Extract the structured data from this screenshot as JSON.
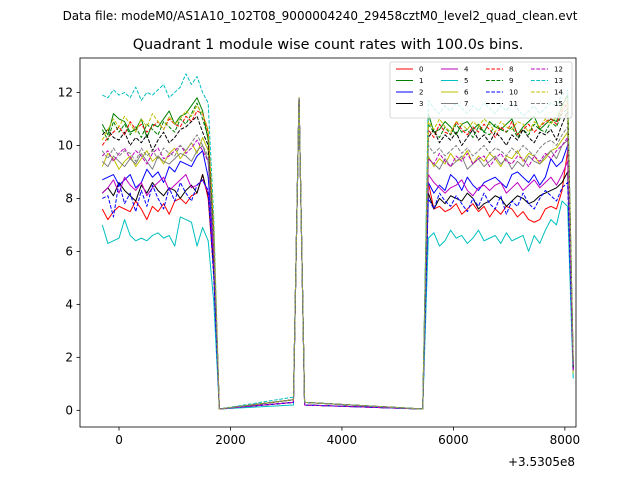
{
  "chart_data": {
    "type": "line",
    "suptitle": "Data file: modeM0/AS1A10_102T08_9000004240_29458cztM0_level2_quad_clean.evt",
    "title": "Quadrant 1 module wise count rates with 100.0s bins.",
    "xlabel": "",
    "ylabel": "",
    "x_offset_label": "+3.5305e8",
    "xlim": [
      -700,
      8200
    ],
    "ylim": [
      -0.63,
      13.3
    ],
    "xticks": [
      0,
      2000,
      4000,
      6000,
      8000
    ],
    "yticks": [
      0,
      2,
      4,
      6,
      8,
      10,
      12
    ],
    "grid": false,
    "legend_location": "top-right",
    "legend_columns": 4,
    "segments": [
      {
        "name": "seg1",
        "start": -300,
        "step": 100,
        "count": 22
      },
      {
        "name": "seg2",
        "start": 3130,
        "step": 100,
        "count": 3
      },
      {
        "name": "seg3",
        "start": 5450,
        "step": 100,
        "count": 28
      }
    ],
    "gaps": [
      {
        "from": 1900,
        "to": 3130
      },
      {
        "from": 3330,
        "to": 5450
      }
    ],
    "series": [
      {
        "name": "0",
        "color": "#ff0000",
        "style": "solid",
        "seg1": [
          7.6,
          7.2,
          7.5,
          7.7,
          7.6,
          7.5,
          7.9,
          7.6,
          7.2,
          7.7,
          7.5,
          7.8,
          7.4,
          7.9,
          8.0,
          7.8,
          8.1,
          8.2,
          8.9,
          8.0,
          5.2,
          0.05
        ],
        "seg2": [
          0.3,
          11.8,
          0.2
        ],
        "seg3": [
          0.05,
          8.6,
          7.6,
          7.7,
          7.5,
          7.6,
          7.8,
          7.4,
          7.6,
          7.8,
          7.5,
          7.7,
          7.3,
          7.6,
          7.4,
          7.7,
          7.6,
          7.3,
          7.5,
          7.2,
          7.1,
          7.2,
          7.6,
          7.7,
          7.6,
          8.3,
          9.8,
          1.8
        ]
      },
      {
        "name": "1",
        "color": "#008000",
        "style": "solid",
        "seg1": [
          10.8,
          10.4,
          11.2,
          11.0,
          10.9,
          10.5,
          10.6,
          11.0,
          10.3,
          10.8,
          10.7,
          11.0,
          11.3,
          10.8,
          11.1,
          11.2,
          11.5,
          11.8,
          11.3,
          10.2,
          6.2,
          0.05
        ],
        "seg2": [
          0.4,
          11.8,
          0.3
        ],
        "seg3": [
          0.05,
          11.2,
          10.5,
          10.6,
          10.9,
          10.7,
          10.4,
          10.8,
          10.9,
          10.6,
          10.8,
          10.5,
          10.9,
          10.7,
          10.6,
          10.8,
          11.0,
          10.4,
          10.7,
          10.9,
          11.1,
          10.6,
          10.8,
          11.0,
          10.9,
          11.5,
          11.9,
          1.8
        ]
      },
      {
        "name": "2",
        "color": "#0000ff",
        "style": "solid",
        "seg1": [
          8.7,
          8.8,
          8.9,
          8.5,
          8.7,
          8.9,
          8.4,
          8.6,
          9.1,
          8.8,
          9.0,
          8.6,
          9.2,
          9.0,
          9.4,
          9.3,
          9.2,
          9.6,
          9.8,
          8.8,
          6.0,
          0.05
        ],
        "seg2": [
          0.4,
          11.8,
          0.3
        ],
        "seg3": [
          0.05,
          8.6,
          8.2,
          8.5,
          8.3,
          8.9,
          8.7,
          8.3,
          8.8,
          8.5,
          8.3,
          8.6,
          8.7,
          8.8,
          8.6,
          8.4,
          8.9,
          9.0,
          8.8,
          8.6,
          8.9,
          8.5,
          8.8,
          9.5,
          9.2,
          9.4,
          10.0,
          1.5
        ]
      },
      {
        "name": "3",
        "color": "#000000",
        "style": "solid",
        "seg1": [
          8.2,
          8.4,
          8.1,
          8.6,
          8.3,
          8.1,
          7.9,
          8.5,
          8.2,
          8.6,
          8.3,
          8.1,
          8.4,
          8.3,
          8.0,
          8.3,
          8.5,
          8.2,
          8.9,
          8.1,
          5.5,
          0.05
        ],
        "seg2": [
          0.3,
          11.8,
          0.2
        ],
        "seg3": [
          0.05,
          8.2,
          7.6,
          8.0,
          7.8,
          8.1,
          8.0,
          7.9,
          8.2,
          8.0,
          7.6,
          7.8,
          7.9,
          8.1,
          8.0,
          7.7,
          7.9,
          8.1,
          8.0,
          7.8,
          7.9,
          8.1,
          8.2,
          8.3,
          8.4,
          8.6,
          9.0,
          1.6
        ]
      },
      {
        "name": "4",
        "color": "#bf00bf",
        "style": "solid",
        "seg1": [
          8.2,
          8.4,
          8.7,
          8.2,
          8.8,
          8.5,
          8.3,
          8.6,
          8.1,
          8.4,
          8.6,
          8.8,
          8.3,
          8.5,
          8.7,
          8.9,
          8.4,
          8.5,
          8.7,
          8.2,
          5.8,
          0.05
        ],
        "seg2": [
          0.3,
          11.8,
          0.2
        ],
        "seg3": [
          0.05,
          8.9,
          8.6,
          8.4,
          8.2,
          8.4,
          8.5,
          8.7,
          8.3,
          8.1,
          8.4,
          8.5,
          8.3,
          8.5,
          8.6,
          8.2,
          8.4,
          8.6,
          8.3,
          8.5,
          8.7,
          8.4,
          8.6,
          8.8,
          8.5,
          8.9,
          9.4,
          1.7
        ]
      },
      {
        "name": "5",
        "color": "#00bfbf",
        "style": "solid",
        "seg1": [
          7.0,
          6.3,
          6.4,
          6.5,
          7.2,
          6.6,
          6.4,
          6.5,
          6.4,
          6.6,
          6.7,
          6.5,
          6.6,
          6.2,
          7.3,
          7.2,
          7.1,
          6.2,
          6.9,
          6.4,
          4.1,
          0.05
        ],
        "seg2": [
          0.2,
          11.8,
          0.2
        ],
        "seg3": [
          0.05,
          6.5,
          6.7,
          6.2,
          6.4,
          6.8,
          6.5,
          6.6,
          6.3,
          6.5,
          6.8,
          6.4,
          6.5,
          6.6,
          6.3,
          6.7,
          6.4,
          6.5,
          6.6,
          6.0,
          6.6,
          6.3,
          6.8,
          7.2,
          7.0,
          7.9,
          7.7,
          1.2
        ]
      },
      {
        "name": "6",
        "color": "#bfbf00",
        "style": "solid",
        "seg1": [
          9.2,
          9.7,
          9.5,
          9.1,
          9.4,
          9.6,
          9.2,
          9.5,
          9.8,
          9.4,
          9.6,
          9.3,
          9.7,
          9.9,
          9.5,
          9.8,
          10.1,
          9.7,
          10.3,
          9.8,
          6.5,
          0.05
        ],
        "seg2": [
          0.4,
          11.8,
          0.3
        ],
        "seg3": [
          0.05,
          9.6,
          9.2,
          9.5,
          9.3,
          9.7,
          9.4,
          9.5,
          9.8,
          9.3,
          9.6,
          9.4,
          9.7,
          9.5,
          9.2,
          9.6,
          9.5,
          9.8,
          9.4,
          9.7,
          9.6,
          9.3,
          9.5,
          9.8,
          9.9,
          10.2,
          10.5,
          1.4
        ]
      },
      {
        "name": "7",
        "color": "#808080",
        "style": "solid",
        "seg1": [
          9.4,
          9.2,
          9.6,
          9.4,
          9.2,
          9.5,
          9.3,
          9.7,
          9.4,
          9.1,
          9.6,
          9.4,
          9.3,
          9.5,
          9.7,
          9.6,
          9.4,
          9.8,
          10.0,
          9.4,
          6.3,
          0.05
        ],
        "seg2": [
          0.4,
          11.8,
          0.3
        ],
        "seg3": [
          0.05,
          9.5,
          9.3,
          9.1,
          9.5,
          9.2,
          9.4,
          9.6,
          9.1,
          9.3,
          9.5,
          9.2,
          9.4,
          9.6,
          9.3,
          9.5,
          9.1,
          9.4,
          9.2,
          9.6,
          9.4,
          9.3,
          9.6,
          9.8,
          9.5,
          10.0,
          10.2,
          1.6
        ]
      },
      {
        "name": "8",
        "color": "#ff0000",
        "style": "dashed",
        "seg1": [
          10.0,
          10.3,
          10.5,
          10.7,
          10.4,
          10.9,
          10.6,
          10.8,
          10.5,
          10.7,
          10.9,
          10.6,
          11.0,
          10.8,
          10.7,
          11.1,
          10.9,
          11.3,
          11.2,
          10.5,
          6.8,
          0.05
        ],
        "seg2": [
          0.4,
          11.8,
          0.3
        ],
        "seg3": [
          0.05,
          10.6,
          10.3,
          10.8,
          10.5,
          10.4,
          10.9,
          10.6,
          10.4,
          10.7,
          10.5,
          10.8,
          10.6,
          10.3,
          10.7,
          10.5,
          10.9,
          10.4,
          10.6,
          10.8,
          10.5,
          10.7,
          10.9,
          11.0,
          10.8,
          11.3,
          11.6,
          1.9
        ]
      },
      {
        "name": "9",
        "color": "#008000",
        "style": "dashed",
        "seg1": [
          10.6,
          10.2,
          10.9,
          10.5,
          10.8,
          10.4,
          10.7,
          10.3,
          10.8,
          10.6,
          10.4,
          10.9,
          10.7,
          10.5,
          11.0,
          10.8,
          11.2,
          11.6,
          11.0,
          10.3,
          6.6,
          0.05
        ],
        "seg2": [
          0.4,
          11.8,
          0.3
        ],
        "seg3": [
          0.05,
          10.8,
          10.5,
          10.3,
          10.7,
          10.4,
          10.8,
          10.5,
          10.6,
          10.3,
          10.7,
          10.5,
          10.4,
          10.8,
          10.6,
          10.5,
          10.7,
          10.3,
          10.6,
          10.4,
          10.8,
          10.6,
          10.5,
          10.9,
          10.7,
          11.2,
          11.4,
          1.7
        ]
      },
      {
        "name": "10",
        "color": "#0000ff",
        "style": "dashed",
        "seg1": [
          8.0,
          8.1,
          7.3,
          8.6,
          7.8,
          8.2,
          7.5,
          8.3,
          7.7,
          8.5,
          8.0,
          7.6,
          8.4,
          7.9,
          8.6,
          8.2,
          7.9,
          8.5,
          8.7,
          8.3,
          5.0,
          0.05
        ],
        "seg2": [
          0.3,
          11.8,
          0.2
        ],
        "seg3": [
          0.05,
          8.0,
          7.6,
          8.2,
          7.9,
          7.7,
          8.1,
          7.8,
          7.5,
          8.0,
          7.7,
          8.2,
          7.8,
          7.6,
          8.1,
          7.4,
          7.9,
          7.7,
          8.2,
          7.8,
          7.6,
          8.0,
          8.3,
          8.1,
          7.9,
          8.4,
          8.6,
          1.5
        ]
      },
      {
        "name": "11",
        "color": "#000000",
        "style": "dashed",
        "seg1": [
          10.4,
          10.6,
          10.3,
          10.2,
          10.5,
          10.0,
          10.3,
          10.1,
          10.4,
          9.8,
          10.2,
          10.5,
          10.1,
          10.3,
          10.6,
          10.7,
          10.9,
          11.1,
          10.5,
          10.0,
          6.4,
          0.05
        ],
        "seg2": [
          0.4,
          11.8,
          0.3
        ],
        "seg3": [
          0.05,
          10.3,
          10.6,
          10.1,
          10.4,
          10.2,
          10.5,
          10.0,
          10.3,
          10.6,
          10.2,
          10.4,
          10.1,
          10.5,
          10.3,
          10.0,
          10.4,
          10.2,
          10.6,
          10.3,
          10.1,
          10.5,
          10.4,
          10.6,
          10.2,
          10.8,
          11.3,
          1.6
        ]
      },
      {
        "name": "12",
        "color": "#bf00bf",
        "style": "dashed",
        "seg1": [
          9.6,
          9.8,
          9.4,
          9.7,
          9.9,
          9.5,
          9.8,
          9.6,
          9.3,
          9.7,
          9.9,
          9.5,
          9.6,
          9.8,
          10.0,
          9.7,
          9.9,
          10.2,
          9.8,
          9.4,
          6.2,
          0.05
        ],
        "seg2": [
          0.3,
          11.8,
          0.2
        ],
        "seg3": [
          0.05,
          9.5,
          9.3,
          9.7,
          9.4,
          9.2,
          9.6,
          9.4,
          9.7,
          9.3,
          9.5,
          9.6,
          9.2,
          9.5,
          9.7,
          9.4,
          9.3,
          9.6,
          9.5,
          9.2,
          9.6,
          9.4,
          9.7,
          9.5,
          9.8,
          10.0,
          10.3,
          1.5
        ]
      },
      {
        "name": "13",
        "color": "#00bfbf",
        "style": "dashed",
        "seg1": [
          11.9,
          11.8,
          12.1,
          11.9,
          12.0,
          11.8,
          12.2,
          11.7,
          12.0,
          11.9,
          12.1,
          12.3,
          11.8,
          12.0,
          12.2,
          12.7,
          12.3,
          12.6,
          12.0,
          11.6,
          7.3,
          0.05
        ],
        "seg2": [
          0.5,
          11.8,
          0.3
        ],
        "seg3": [
          0.05,
          11.7,
          11.4,
          11.2,
          11.5,
          11.3,
          11.6,
          11.4,
          11.2,
          11.5,
          11.3,
          11.6,
          11.4,
          11.2,
          11.5,
          11.3,
          11.6,
          11.4,
          11.1,
          11.3,
          11.5,
          11.2,
          11.4,
          11.6,
          11.5,
          11.9,
          12.1,
          1.8
        ]
      },
      {
        "name": "14",
        "color": "#bfbf00",
        "style": "dashed",
        "seg1": [
          10.2,
          10.6,
          11.0,
          10.7,
          11.1,
          10.8,
          10.5,
          11.0,
          10.7,
          11.2,
          10.9,
          10.6,
          11.1,
          10.8,
          11.0,
          11.3,
          11.1,
          11.5,
          11.2,
          10.6,
          6.9,
          0.05
        ],
        "seg2": [
          0.4,
          11.8,
          0.3
        ],
        "seg3": [
          0.05,
          10.9,
          10.6,
          11.0,
          10.7,
          10.5,
          10.9,
          10.8,
          10.6,
          10.9,
          10.7,
          11.0,
          10.8,
          10.5,
          10.9,
          10.7,
          10.6,
          10.9,
          10.8,
          10.5,
          10.9,
          10.7,
          11.0,
          10.8,
          11.1,
          11.4,
          11.7,
          1.9
        ]
      },
      {
        "name": "15",
        "color": "#808080",
        "style": "dashed",
        "seg1": [
          9.8,
          9.5,
          9.9,
          9.6,
          9.8,
          9.7,
          9.4,
          9.9,
          9.6,
          9.8,
          9.5,
          9.9,
          9.7,
          9.6,
          10.0,
          9.8,
          10.1,
          10.4,
          10.0,
          9.6,
          6.3,
          0.05
        ],
        "seg2": [
          0.4,
          11.8,
          0.3
        ],
        "seg3": [
          0.05,
          10.0,
          9.7,
          9.9,
          9.6,
          9.8,
          10.0,
          9.7,
          9.9,
          9.6,
          9.8,
          10.0,
          9.7,
          9.9,
          9.8,
          9.6,
          9.9,
          9.7,
          10.0,
          9.8,
          9.6,
          9.9,
          10.1,
          10.2,
          10.0,
          10.4,
          10.7,
          1.7
        ]
      }
    ]
  }
}
